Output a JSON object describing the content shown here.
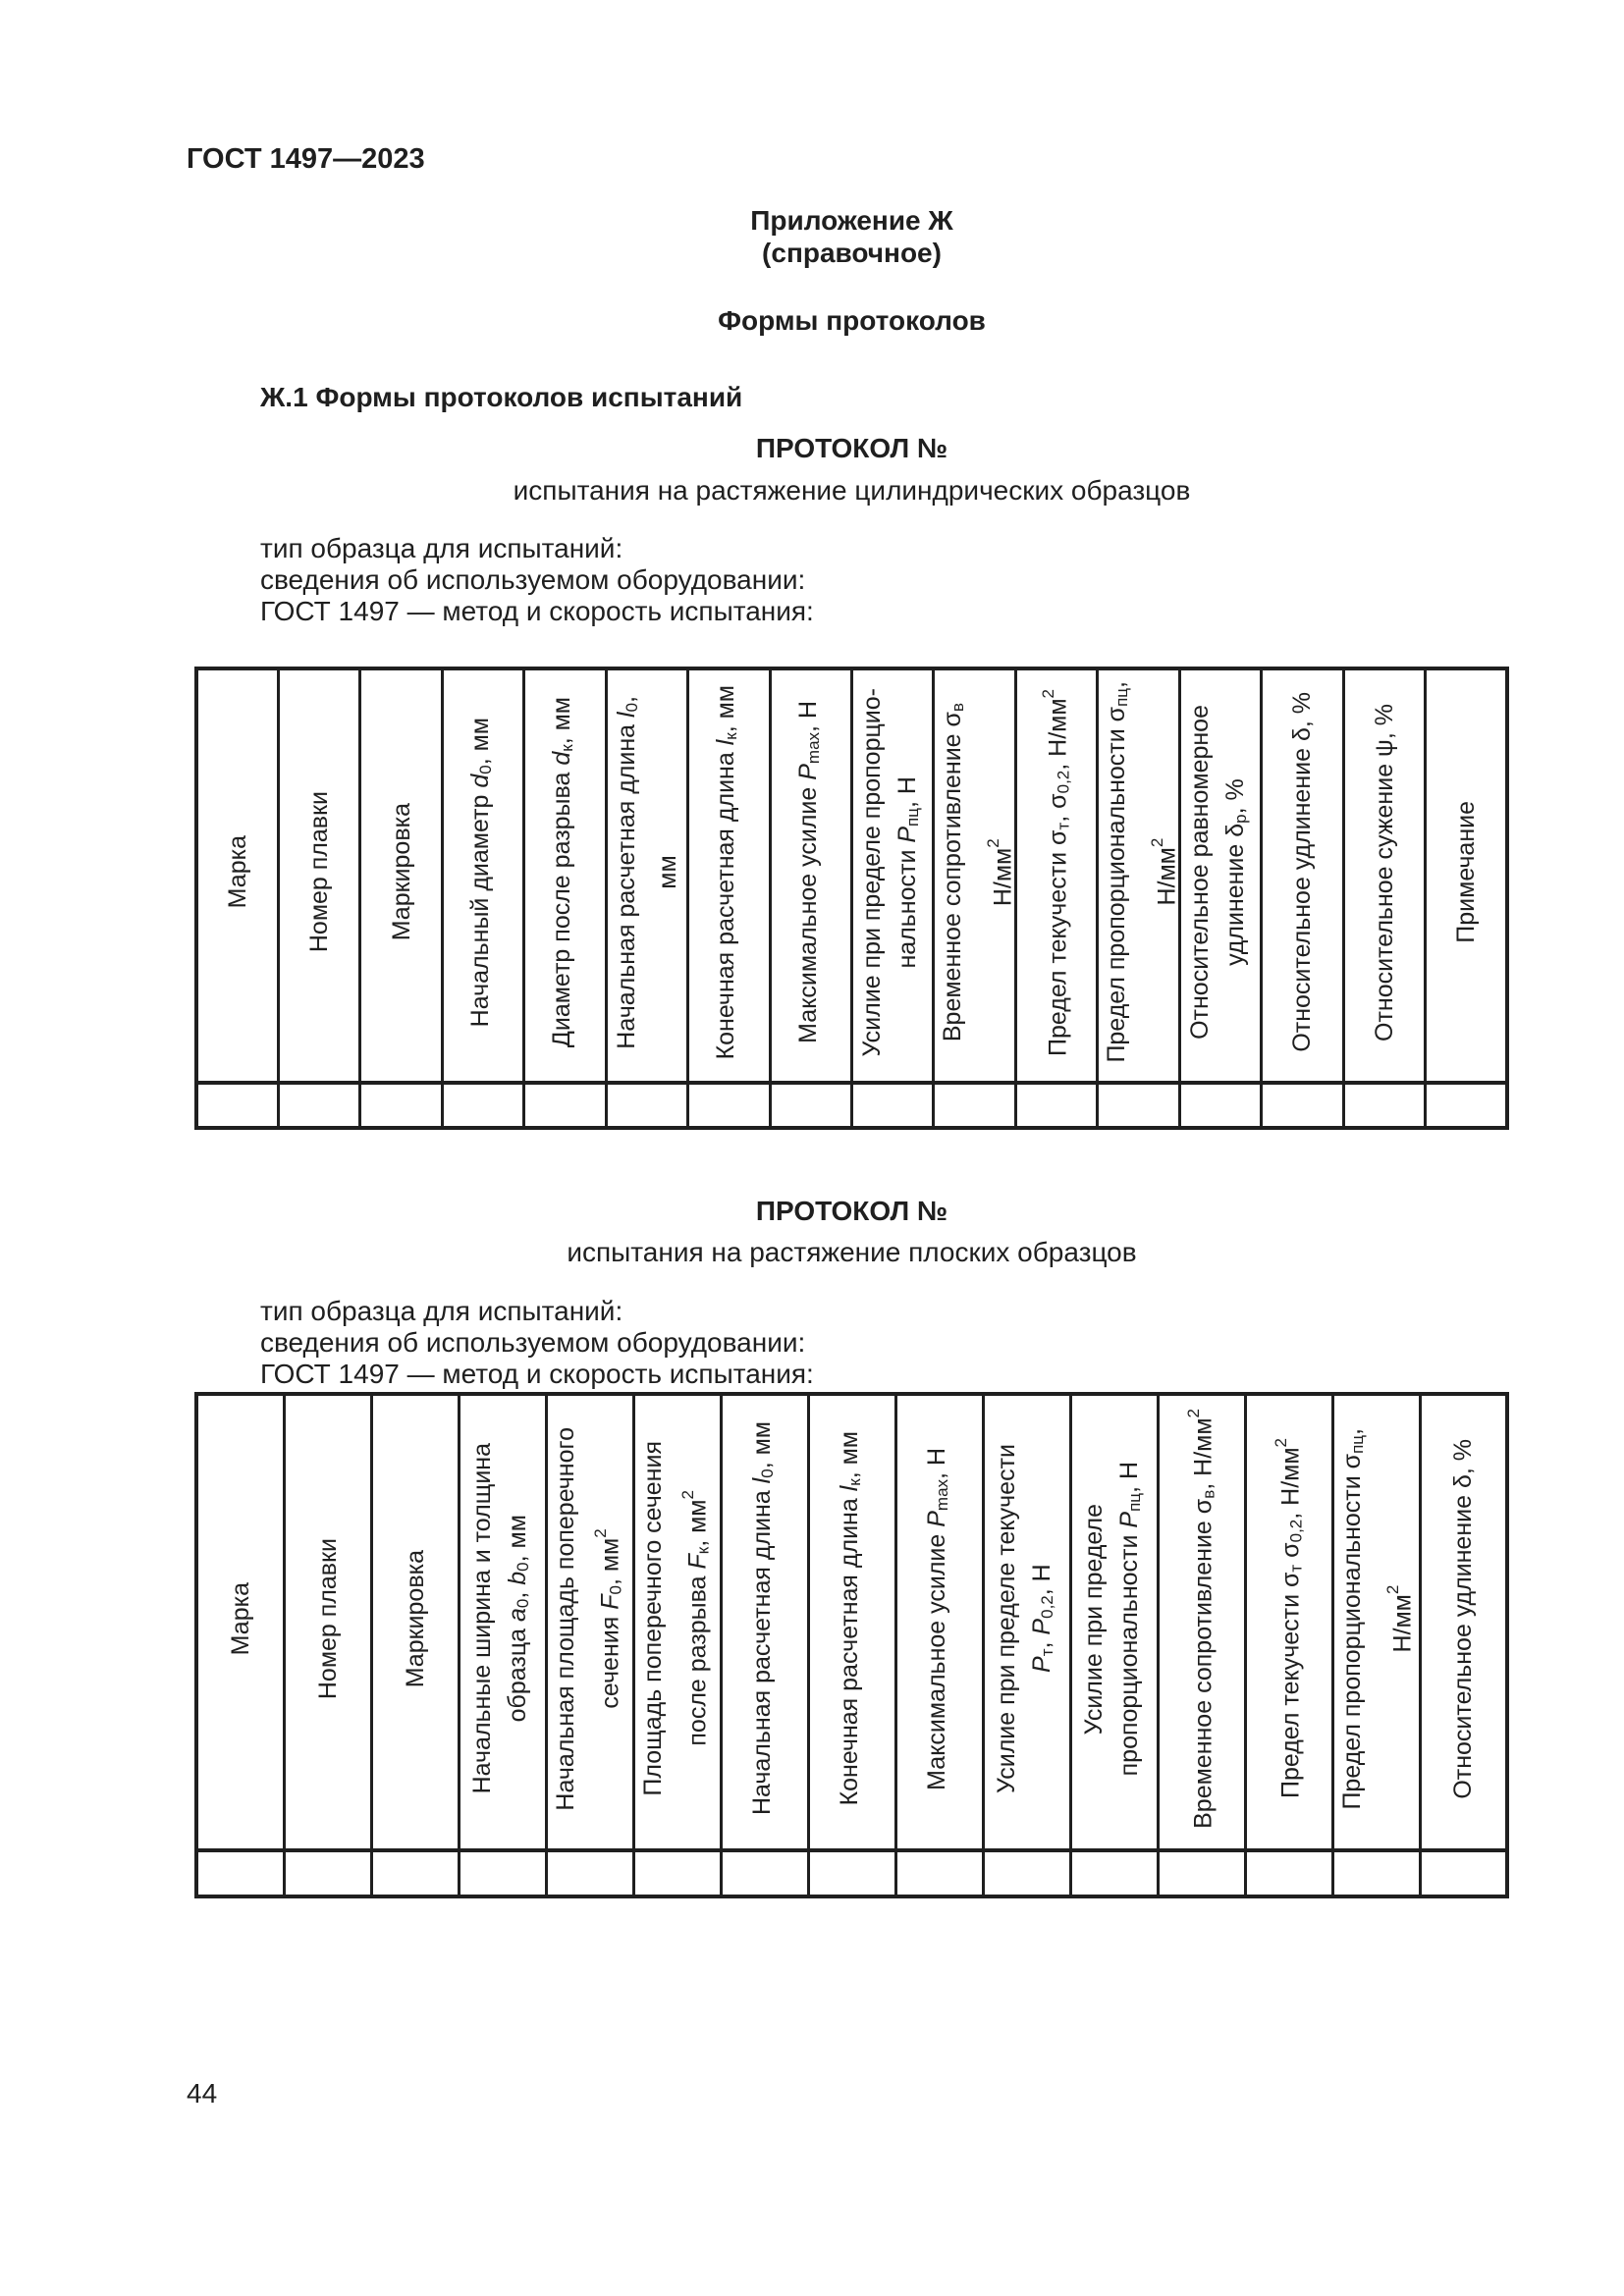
{
  "page": {
    "doc_code": "ГОСТ 1497—2023",
    "page_number": "44"
  },
  "appendix": {
    "title": "Приложение Ж",
    "subtitle": "(справочное)",
    "heading": "Формы протоколов",
    "section_heading": "Ж.1 Формы протоколов испытаний"
  },
  "protocol1": {
    "title": "ПРОТОКОЛ №",
    "subtitle": "испытания на растяжение цилиндрических образцов",
    "info_lines": [
      "тип образца для испытаний:",
      "сведения об используемом оборудовании:",
      "ГОСТ 1497 — метод и скорость испытания:"
    ],
    "columns": [
      "Марка",
      "Номер плавки",
      "Маркировка",
      "Начальный диаметр *d*~0~, мм",
      "Диаметр после разрыва *d*~к~, мм",
      "Начальная расчетная длина *l*~0~,\nмм",
      "Конечная расчетная длина *l*~к~, мм",
      "Максимальное усилие *P*~max~, Н",
      "Усилие при пределе пропорцио-\nнальности *P*~пц~, Н",
      "Временное сопротивление σ~в~\nН/мм^2^",
      "Предел текучести σ~т~, σ~0,2~, Н/мм^2^",
      "Предел пропорциональности σ~пц~,\nН/мм^2^",
      "Относительное равномерное\nудлинение  δ~р~, %",
      "Относительное удлинение δ, %",
      "Относительное сужение ψ, %",
      "Примечание"
    ]
  },
  "protocol2": {
    "title": "ПРОТОКОЛ №",
    "subtitle": "испытания на растяжение плоских образцов",
    "info_lines": [
      "тип образца для испытаний:",
      "сведения об используемом оборудовании:",
      "ГОСТ 1497 — метод и скорость испытания:"
    ],
    "columns": [
      "Марка",
      "Номер плавки",
      "Маркировка",
      "Начальные ширина и толщина\nобразца *a*~0~, *b*~0~, мм",
      "Начальная площадь поперечного\nсечения *F*~0~, мм^2^",
      "Площадь поперечного сечения\nпосле разрыва *F*~к~, мм^2^",
      "Начальная расчетная длина *l*~0~, мм",
      "Конечная расчетная длина *l*~к~, мм",
      "Максимальное усилие *P*~max~, Н",
      "Усилие при пределе текучести\n*P*~т~, *P*~0,2~, Н",
      "Усилие при пределе\nпропорциональности *P*~пц~, Н",
      "Временное сопротивление σ~в~, Н/мм^2^",
      "Предел текучести σ~т~ σ~0,2~, Н/мм^2^",
      "Предел пропорциональности σ~пц~,\nН/мм^2^",
      "Относительное удлинение δ, %"
    ]
  }
}
